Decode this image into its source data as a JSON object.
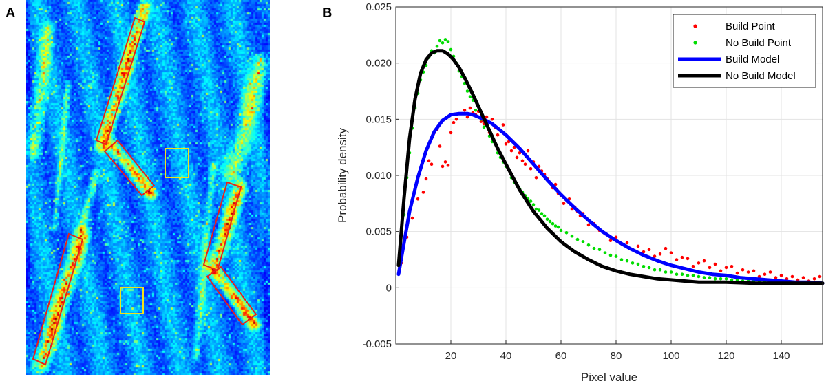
{
  "panels": {
    "a": {
      "label": "A"
    },
    "b": {
      "label": "B"
    }
  },
  "heatmap": {
    "colormap": [
      "#00008f",
      "#0000ff",
      "#007fff",
      "#00ffff",
      "#7fff7f",
      "#ffff00",
      "#ff7f00",
      "#ff0000",
      "#7f0000"
    ],
    "annotation_colors": {
      "red_box": "#e8201a",
      "yellow_box": "#f2e01b"
    }
  },
  "chart_data": {
    "type": "scatter",
    "xlabel": "Pixel value",
    "ylabel": "Probability density",
    "xlim": [
      0,
      155
    ],
    "ylim": [
      -0.005,
      0.025
    ],
    "xticks": [
      20,
      40,
      60,
      80,
      100,
      120,
      140
    ],
    "yticks": [
      -0.005,
      0,
      0.005,
      0.01,
      0.015,
      0.02,
      0.025
    ],
    "ytick_labels": [
      "-0.005",
      "0",
      "0.005",
      "0.010",
      "0.015",
      "0.020",
      "0.025"
    ],
    "grid": true,
    "legend_position": "top-right",
    "series": [
      {
        "name": "Build Point",
        "kind": "points",
        "color": "#ff0000",
        "x": [
          2,
          4,
          6,
          8,
          10,
          11,
          12,
          13,
          14,
          15,
          16,
          17,
          18,
          19,
          20,
          21,
          22,
          24,
          25,
          26,
          27,
          28,
          29,
          30,
          31,
          32,
          33,
          34,
          35,
          36,
          37,
          38,
          39,
          40,
          41,
          42,
          43,
          44,
          45,
          46,
          47,
          48,
          49,
          50,
          51,
          52,
          53,
          54,
          55,
          56,
          57,
          58,
          59,
          60,
          61,
          62,
          63,
          64,
          65,
          66,
          67,
          68,
          70,
          72,
          74,
          76,
          78,
          80,
          82,
          84,
          86,
          88,
          90,
          92,
          94,
          96,
          98,
          100,
          102,
          104,
          106,
          108,
          110,
          112,
          114,
          116,
          118,
          120,
          122,
          124,
          126,
          128,
          130,
          132,
          134,
          136,
          138,
          140,
          142,
          144,
          146,
          148,
          150,
          152,
          154
        ],
        "y": [
          0.0022,
          0.0045,
          0.0062,
          0.0079,
          0.0085,
          0.0097,
          0.0113,
          0.011,
          0.0138,
          0.0141,
          0.0126,
          0.0108,
          0.0112,
          0.0109,
          0.0138,
          0.0147,
          0.015,
          0.0155,
          0.0158,
          0.0152,
          0.016,
          0.0156,
          0.0154,
          0.0157,
          0.0148,
          0.0146,
          0.0152,
          0.0138,
          0.015,
          0.0143,
          0.0136,
          0.014,
          0.0145,
          0.0128,
          0.013,
          0.0122,
          0.0125,
          0.0116,
          0.012,
          0.0113,
          0.011,
          0.0122,
          0.0106,
          0.0112,
          0.0098,
          0.0108,
          0.0104,
          0.0101,
          0.0097,
          0.0093,
          0.0089,
          0.0092,
          0.0084,
          0.0082,
          0.0075,
          0.0078,
          0.0079,
          0.007,
          0.0072,
          0.0068,
          0.0064,
          0.0066,
          0.0056,
          0.0057,
          0.0051,
          0.0048,
          0.0042,
          0.0045,
          0.0039,
          0.004,
          0.0034,
          0.0037,
          0.0032,
          0.0034,
          0.0028,
          0.003,
          0.0035,
          0.0031,
          0.0025,
          0.0027,
          0.0026,
          0.0019,
          0.0022,
          0.0024,
          0.0018,
          0.0021,
          0.0015,
          0.0018,
          0.0019,
          0.0013,
          0.0016,
          0.0014,
          0.0015,
          0.001,
          0.0012,
          0.0014,
          0.0009,
          0.0011,
          0.0008,
          0.001,
          0.0007,
          0.0009,
          0.0006,
          0.0008,
          0.001
        ]
      },
      {
        "name": "No Build Point",
        "kind": "points",
        "color": "#00dd00",
        "x": [
          2,
          3,
          4,
          5,
          6,
          7,
          8,
          9,
          10,
          11,
          12,
          13,
          14,
          15,
          16,
          17,
          18,
          19,
          20,
          21,
          22,
          23,
          24,
          25,
          26,
          27,
          28,
          29,
          30,
          31,
          32,
          33,
          34,
          35,
          36,
          37,
          38,
          39,
          40,
          41,
          42,
          43,
          44,
          45,
          46,
          47,
          48,
          49,
          50,
          51,
          52,
          53,
          54,
          55,
          56,
          57,
          58,
          59,
          60,
          62,
          64,
          66,
          68,
          70,
          72,
          74,
          76,
          78,
          80,
          82,
          84,
          86,
          88,
          90,
          92,
          94,
          96,
          98,
          100,
          102,
          104,
          106,
          108,
          110,
          112,
          114,
          116,
          118,
          120,
          122,
          124,
          126,
          128,
          130,
          132,
          134,
          136,
          138,
          140,
          142,
          144,
          146,
          148,
          150,
          152,
          154
        ],
        "y": [
          0.0035,
          0.0065,
          0.0098,
          0.012,
          0.0142,
          0.016,
          0.0173,
          0.0185,
          0.0192,
          0.0198,
          0.0205,
          0.0211,
          0.0209,
          0.0215,
          0.022,
          0.0218,
          0.0221,
          0.0219,
          0.0212,
          0.0206,
          0.02,
          0.0193,
          0.0188,
          0.0182,
          0.0175,
          0.017,
          0.0167,
          0.0158,
          0.0152,
          0.015,
          0.0143,
          0.0144,
          0.0135,
          0.013,
          0.0128,
          0.012,
          0.0116,
          0.0112,
          0.0108,
          0.0105,
          0.0098,
          0.0094,
          0.0092,
          0.0088,
          0.0085,
          0.0082,
          0.0079,
          0.0077,
          0.0074,
          0.007,
          0.0069,
          0.0066,
          0.0064,
          0.0061,
          0.0059,
          0.0057,
          0.0055,
          0.0054,
          0.0051,
          0.0049,
          0.0046,
          0.0043,
          0.0041,
          0.0038,
          0.0035,
          0.0034,
          0.0031,
          0.0029,
          0.0028,
          0.0025,
          0.0024,
          0.0022,
          0.0021,
          0.0019,
          0.0018,
          0.0016,
          0.0016,
          0.0014,
          0.0014,
          0.0012,
          0.0012,
          0.0011,
          0.0011,
          0.001,
          0.0009,
          0.0009,
          0.0008,
          0.0008,
          0.0008,
          0.0007,
          0.0007,
          0.0006,
          0.0006,
          0.0006,
          0.0005,
          0.0006,
          0.0005,
          0.0005,
          0.0005,
          0.0004,
          0.0005,
          0.0004,
          0.0004,
          0.0004,
          0.0004,
          0.0004
        ]
      },
      {
        "name": "Build Model",
        "kind": "line",
        "color": "#0000ff",
        "x": [
          1,
          3,
          5,
          8,
          11,
          14,
          17,
          20,
          23,
          26,
          28,
          31,
          35,
          40,
          45,
          50,
          55,
          60,
          65,
          70,
          75,
          80,
          85,
          90,
          95,
          100,
          105,
          110,
          115,
          120,
          125,
          130,
          135,
          140,
          145,
          150,
          155
        ],
        "y": [
          0.0012,
          0.004,
          0.0068,
          0.0098,
          0.0122,
          0.0139,
          0.0149,
          0.0154,
          0.0155,
          0.0155,
          0.0154,
          0.0151,
          0.0146,
          0.0136,
          0.0124,
          0.011,
          0.0096,
          0.0083,
          0.0071,
          0.006,
          0.005,
          0.0042,
          0.0035,
          0.0029,
          0.0024,
          0.002,
          0.0017,
          0.0014,
          0.0012,
          0.0011,
          0.0009,
          0.0008,
          0.0007,
          0.0006,
          0.0005,
          0.0005,
          0.0004
        ]
      },
      {
        "name": "No Build Model",
        "kind": "line",
        "color": "#000000",
        "x": [
          1,
          3,
          5,
          7,
          9,
          11,
          13,
          15,
          17,
          19,
          21,
          23,
          25,
          28,
          31,
          34,
          37,
          40,
          45,
          50,
          55,
          60,
          65,
          70,
          75,
          80,
          85,
          90,
          95,
          100,
          110,
          120,
          130,
          140,
          150,
          155
        ],
        "y": [
          0.002,
          0.008,
          0.0133,
          0.0168,
          0.0191,
          0.0203,
          0.0209,
          0.0211,
          0.0211,
          0.0208,
          0.0203,
          0.0196,
          0.0187,
          0.0172,
          0.0156,
          0.014,
          0.0124,
          0.011,
          0.0087,
          0.0068,
          0.0053,
          0.0041,
          0.0032,
          0.0025,
          0.0019,
          0.0015,
          0.0012,
          0.001,
          0.0008,
          0.0007,
          0.0005,
          0.0005,
          0.0004,
          0.0004,
          0.0004,
          0.0004
        ]
      }
    ]
  }
}
